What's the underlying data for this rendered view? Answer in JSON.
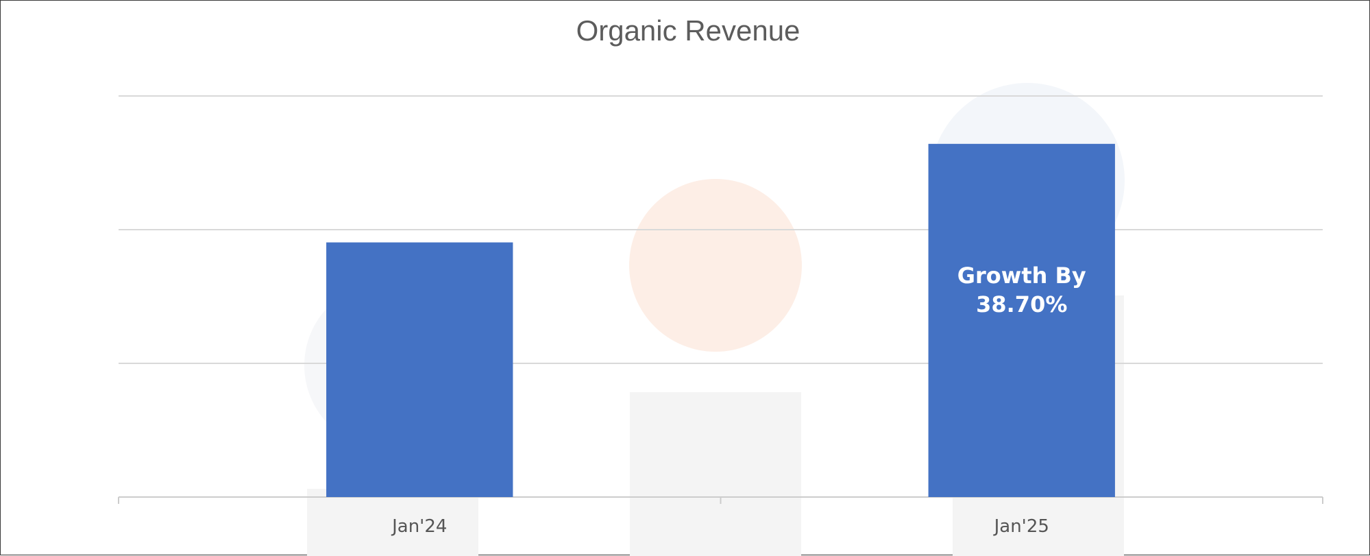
{
  "chart_data": {
    "type": "bar",
    "title": "Organic Revenue",
    "categories": [
      "Jan'24",
      "Jan'25"
    ],
    "values": [
      100,
      138.7
    ],
    "ylim": [
      0,
      157.5
    ],
    "grid": true,
    "legend": "none",
    "colors": {
      "bar": "#4472C4",
      "grid": "#d9d9d9",
      "axis": "#cccccc",
      "watermark": "#f4f4f4",
      "watermark_accent": "#fdeee6"
    },
    "annotation": {
      "category": "Jan'25",
      "lines": [
        "Growth By",
        "38.70%"
      ]
    }
  }
}
